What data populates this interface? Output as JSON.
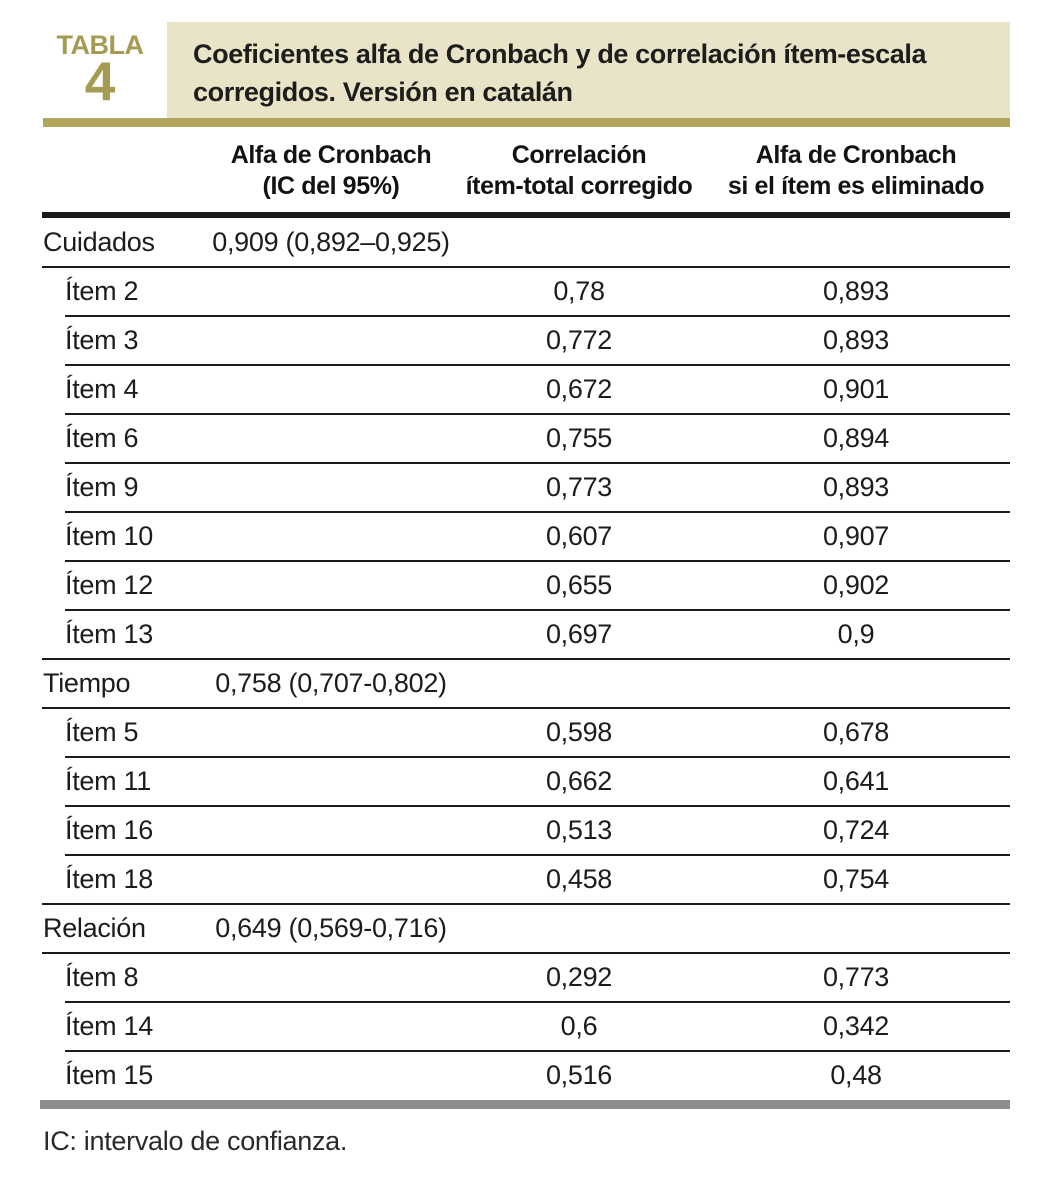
{
  "badge": {
    "label": "TABLA",
    "number": "4",
    "color": "#a69b52"
  },
  "title": {
    "line1": "Coeficientes alfa de Cronbach y de correlación ítem-escala",
    "line2": "corregidos. Versión en catalán",
    "box_background": "#e9e3c8",
    "accent_bar_color": "#b2a65f"
  },
  "columns": {
    "alpha_ci": {
      "line1": "Alfa de Cronbach",
      "line2": "(IC del 95%)"
    },
    "corr": {
      "line1": "Correlación",
      "line2": "ítem-total corregido"
    },
    "alpha_del": {
      "line1": "Alfa de Cronbach",
      "line2": "si el ítem es eliminado"
    }
  },
  "table": {
    "rows": [
      {
        "label": "Cuidados",
        "type": "group",
        "alpha_ci": "0,909 (0,892–0,925)",
        "corr": "",
        "alpha_del": ""
      },
      {
        "label": "Ítem 2",
        "type": "item",
        "alpha_ci": "",
        "corr": "0,78",
        "alpha_del": "0,893"
      },
      {
        "label": "Ítem 3",
        "type": "item",
        "alpha_ci": "",
        "corr": "0,772",
        "alpha_del": "0,893"
      },
      {
        "label": "Ítem 4",
        "type": "item",
        "alpha_ci": "",
        "corr": "0,672",
        "alpha_del": "0,901"
      },
      {
        "label": "Ítem 6",
        "type": "item",
        "alpha_ci": "",
        "corr": "0,755",
        "alpha_del": "0,894"
      },
      {
        "label": "Ítem 9",
        "type": "item",
        "alpha_ci": "",
        "corr": "0,773",
        "alpha_del": "0,893"
      },
      {
        "label": "Ítem 10",
        "type": "item",
        "alpha_ci": "",
        "corr": "0,607",
        "alpha_del": "0,907"
      },
      {
        "label": "Ítem 12",
        "type": "item",
        "alpha_ci": "",
        "corr": "0,655",
        "alpha_del": "0,902"
      },
      {
        "label": "Ítem 13",
        "type": "item",
        "alpha_ci": "",
        "corr": "0,697",
        "alpha_del": "0,9"
      },
      {
        "label": "Tiempo",
        "type": "group",
        "alpha_ci": "0,758 (0,707-0,802)",
        "corr": "",
        "alpha_del": ""
      },
      {
        "label": "Ítem 5",
        "type": "item",
        "alpha_ci": "",
        "corr": "0,598",
        "alpha_del": "0,678"
      },
      {
        "label": "Ítem 11",
        "type": "item",
        "alpha_ci": "",
        "corr": "0,662",
        "alpha_del": "0,641"
      },
      {
        "label": "Ítem 16",
        "type": "item",
        "alpha_ci": "",
        "corr": "0,513",
        "alpha_del": "0,724"
      },
      {
        "label": "Ítem 18",
        "type": "item",
        "alpha_ci": "",
        "corr": "0,458",
        "alpha_del": "0,754"
      },
      {
        "label": "Relación",
        "type": "group",
        "alpha_ci": "0,649 (0,569-0,716)",
        "corr": "",
        "alpha_del": ""
      },
      {
        "label": "Ítem 8",
        "type": "item",
        "alpha_ci": "",
        "corr": "0,292",
        "alpha_del": "0,773"
      },
      {
        "label": "Ítem 14",
        "type": "item",
        "alpha_ci": "",
        "corr": "0,6",
        "alpha_del": "0,342"
      },
      {
        "label": "Ítem 15",
        "type": "item",
        "alpha_ci": "",
        "corr": "0,516",
        "alpha_del": "0,48"
      }
    ]
  },
  "footnote": "IC: intervalo de confianza."
}
